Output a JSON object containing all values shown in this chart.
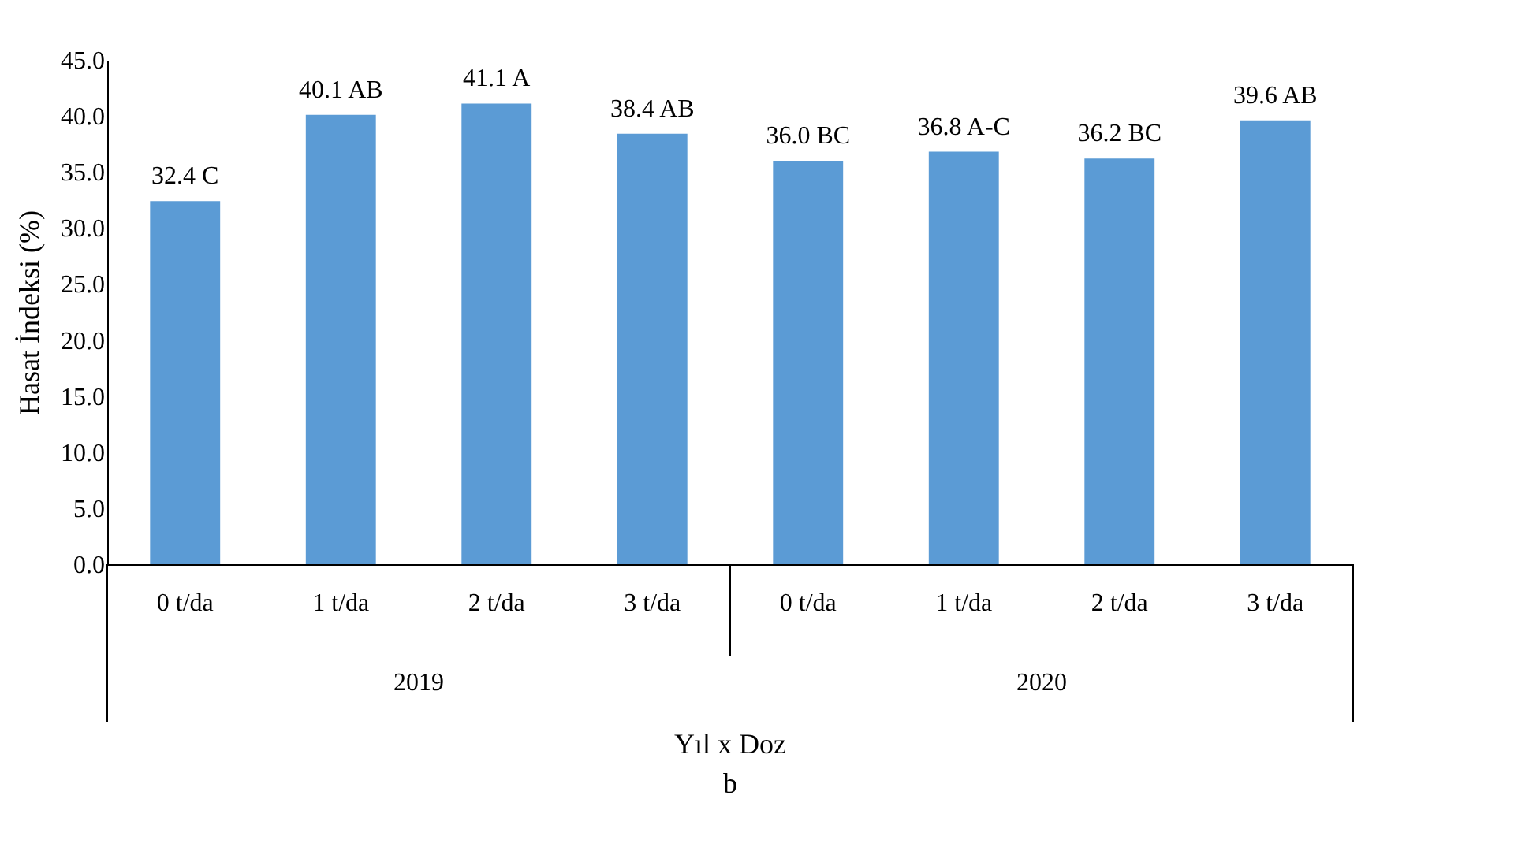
{
  "chart_data": {
    "type": "bar",
    "xlabel": "Yıl x Doz",
    "ylabel": "Hasat İndeksi (%)",
    "categories": [
      "0 t/da",
      "1 t/da",
      "2 t/da",
      "3 t/da",
      "0 t/da",
      "1 t/da",
      "2 t/da",
      "3 t/da"
    ],
    "values": [
      32.4,
      40.1,
      41.1,
      38.4,
      36.0,
      36.8,
      36.2,
      39.6
    ],
    "value_labels": [
      "32.4 C",
      "40.1 AB",
      "41.1 A",
      "38.4 AB",
      "36.0 BC",
      "36.8 A-C",
      "36.2 BC",
      "39.6 AB"
    ],
    "color": "#5b9bd5",
    "ylim": [
      0,
      45
    ],
    "yticks": [
      {
        "value": 0,
        "label": "0.0"
      },
      {
        "value": 5,
        "label": "5.0"
      },
      {
        "value": 10,
        "label": "10.0"
      },
      {
        "value": 15,
        "label": "15.0"
      },
      {
        "value": 20,
        "label": "20.0"
      },
      {
        "value": 25,
        "label": "25.0"
      },
      {
        "value": 30,
        "label": "30.0"
      },
      {
        "value": 35,
        "label": "35.0"
      },
      {
        "value": 40,
        "label": "40.0"
      },
      {
        "value": 45,
        "label": "45.0"
      }
    ],
    "grid": false,
    "annotations": [
      "2019",
      "2020",
      "b"
    ]
  }
}
